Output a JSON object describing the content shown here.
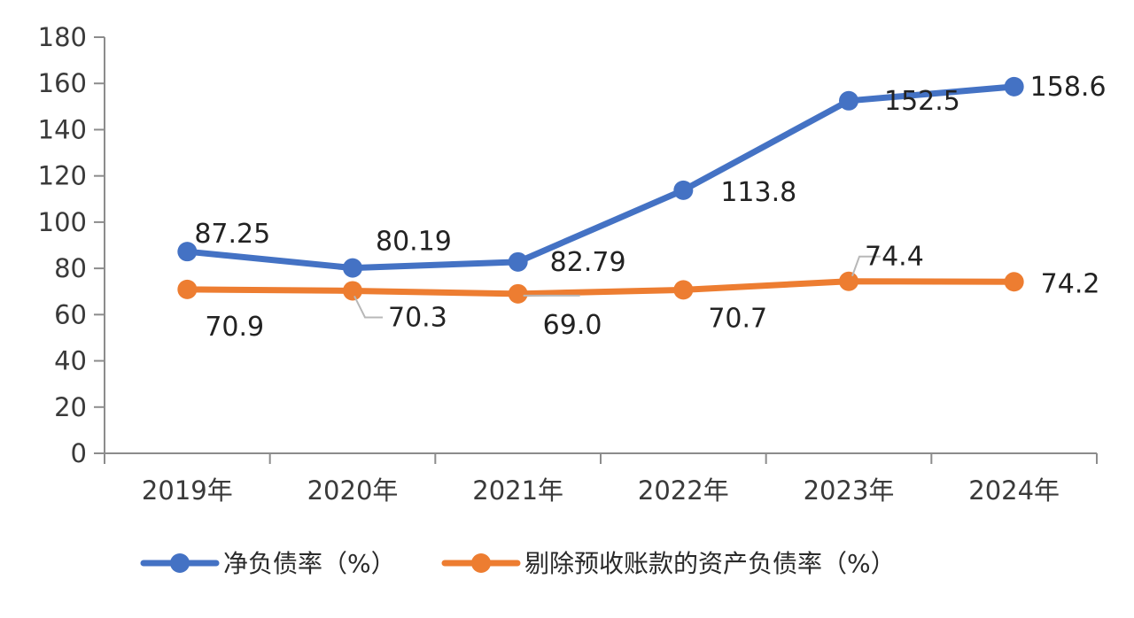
{
  "chart_data": {
    "type": "line",
    "categories": [
      "2019年",
      "2020年",
      "2021年",
      "2022年",
      "2023年",
      "2024年"
    ],
    "ylim": [
      0,
      180
    ],
    "yticks": [
      0,
      20,
      40,
      60,
      80,
      100,
      120,
      140,
      160,
      180
    ],
    "grid": false,
    "legend_position": "bottom",
    "series": [
      {
        "name": "净负债率（%）",
        "values": [
          87.25,
          80.19,
          82.79,
          113.8,
          152.5,
          158.6
        ],
        "labels": [
          "87.25",
          "80.19",
          "82.79",
          "113.8",
          "152.5",
          "158.6"
        ],
        "color": "#4472C4"
      },
      {
        "name": "剔除预收账款的资产负债率（%）",
        "values": [
          70.9,
          70.3,
          69.0,
          70.7,
          74.4,
          74.2
        ],
        "labels": [
          "70.9",
          "70.3",
          "69.0",
          "70.7",
          "74.4",
          "74.2"
        ],
        "color": "#ED7D31"
      }
    ]
  }
}
